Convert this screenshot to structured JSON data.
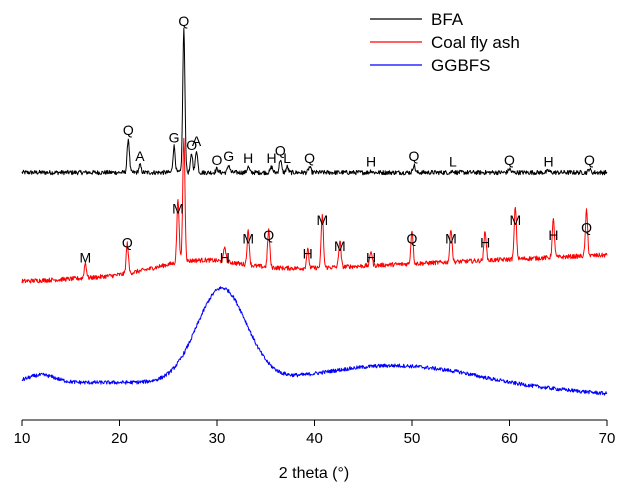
{
  "chart_data": {
    "type": "line",
    "title": "",
    "xlabel": "2 theta (°)",
    "ylabel": "",
    "xlim": [
      10,
      70
    ],
    "xticks": [
      "10",
      "20",
      "30",
      "40",
      "50",
      "60",
      "70"
    ],
    "y_ticks_shown": false,
    "grid": false,
    "legend_position": "top-right",
    "series": [
      {
        "name": "BFA",
        "color": "#000000",
        "baseline": 0.62,
        "noise": 0.006,
        "peaks": [
          {
            "x": 20.9,
            "y": 0.71,
            "label": "Q"
          },
          {
            "x": 22.1,
            "y": 0.64,
            "label": "A"
          },
          {
            "x": 25.6,
            "y": 0.69,
            "label": "G"
          },
          {
            "x": 26.6,
            "y": 1.0,
            "label": "Q"
          },
          {
            "x": 27.4,
            "y": 0.67,
            "label": "O"
          },
          {
            "x": 27.9,
            "y": 0.68,
            "label": "A"
          },
          {
            "x": 30.0,
            "y": 0.63,
            "label": "O"
          },
          {
            "x": 31.2,
            "y": 0.64,
            "label": "G"
          },
          {
            "x": 33.2,
            "y": 0.635,
            "label": "H"
          },
          {
            "x": 35.6,
            "y": 0.635,
            "label": "H"
          },
          {
            "x": 36.5,
            "y": 0.655,
            "label": "Q"
          },
          {
            "x": 37.2,
            "y": 0.635,
            "label": "L"
          },
          {
            "x": 39.5,
            "y": 0.635,
            "label": "Q"
          },
          {
            "x": 45.8,
            "y": 0.625,
            "label": "H"
          },
          {
            "x": 50.2,
            "y": 0.64,
            "label": "Q"
          },
          {
            "x": 54.2,
            "y": 0.625,
            "label": "L"
          },
          {
            "x": 60.0,
            "y": 0.63,
            "label": "Q"
          },
          {
            "x": 64.0,
            "y": 0.625,
            "label": "H"
          },
          {
            "x": 68.2,
            "y": 0.63,
            "label": "Q"
          }
        ]
      },
      {
        "name": "Coal fly ash",
        "color": "#ff0000",
        "baseline": 0.33,
        "noise": 0.006,
        "peaks": [
          {
            "x": 16.5,
            "y": 0.37,
            "label": "M"
          },
          {
            "x": 20.8,
            "y": 0.41,
            "label": "Q"
          },
          {
            "x": 26.0,
            "y": 0.5,
            "label": "M"
          },
          {
            "x": 26.6,
            "y": 0.66,
            "label": ""
          },
          {
            "x": 30.8,
            "y": 0.37,
            "label": "H"
          },
          {
            "x": 33.2,
            "y": 0.42,
            "label": "M"
          },
          {
            "x": 35.3,
            "y": 0.43,
            "label": "Q"
          },
          {
            "x": 39.3,
            "y": 0.38,
            "label": "H"
          },
          {
            "x": 40.8,
            "y": 0.47,
            "label": "M"
          },
          {
            "x": 42.6,
            "y": 0.4,
            "label": "M"
          },
          {
            "x": 45.8,
            "y": 0.37,
            "label": "H"
          },
          {
            "x": 50.0,
            "y": 0.42,
            "label": "Q"
          },
          {
            "x": 54.0,
            "y": 0.42,
            "label": "M"
          },
          {
            "x": 57.5,
            "y": 0.41,
            "label": "H"
          },
          {
            "x": 60.6,
            "y": 0.47,
            "label": "M"
          },
          {
            "x": 64.5,
            "y": 0.43,
            "label": "H"
          },
          {
            "x": 67.9,
            "y": 0.45,
            "label": "Q"
          }
        ]
      },
      {
        "name": "GGBFS",
        "color": "#0000ff",
        "baseline": 0.06,
        "noise": 0.005,
        "broad_hump_center": 30.5,
        "broad_hump_height": 0.25,
        "peaks": []
      }
    ]
  }
}
